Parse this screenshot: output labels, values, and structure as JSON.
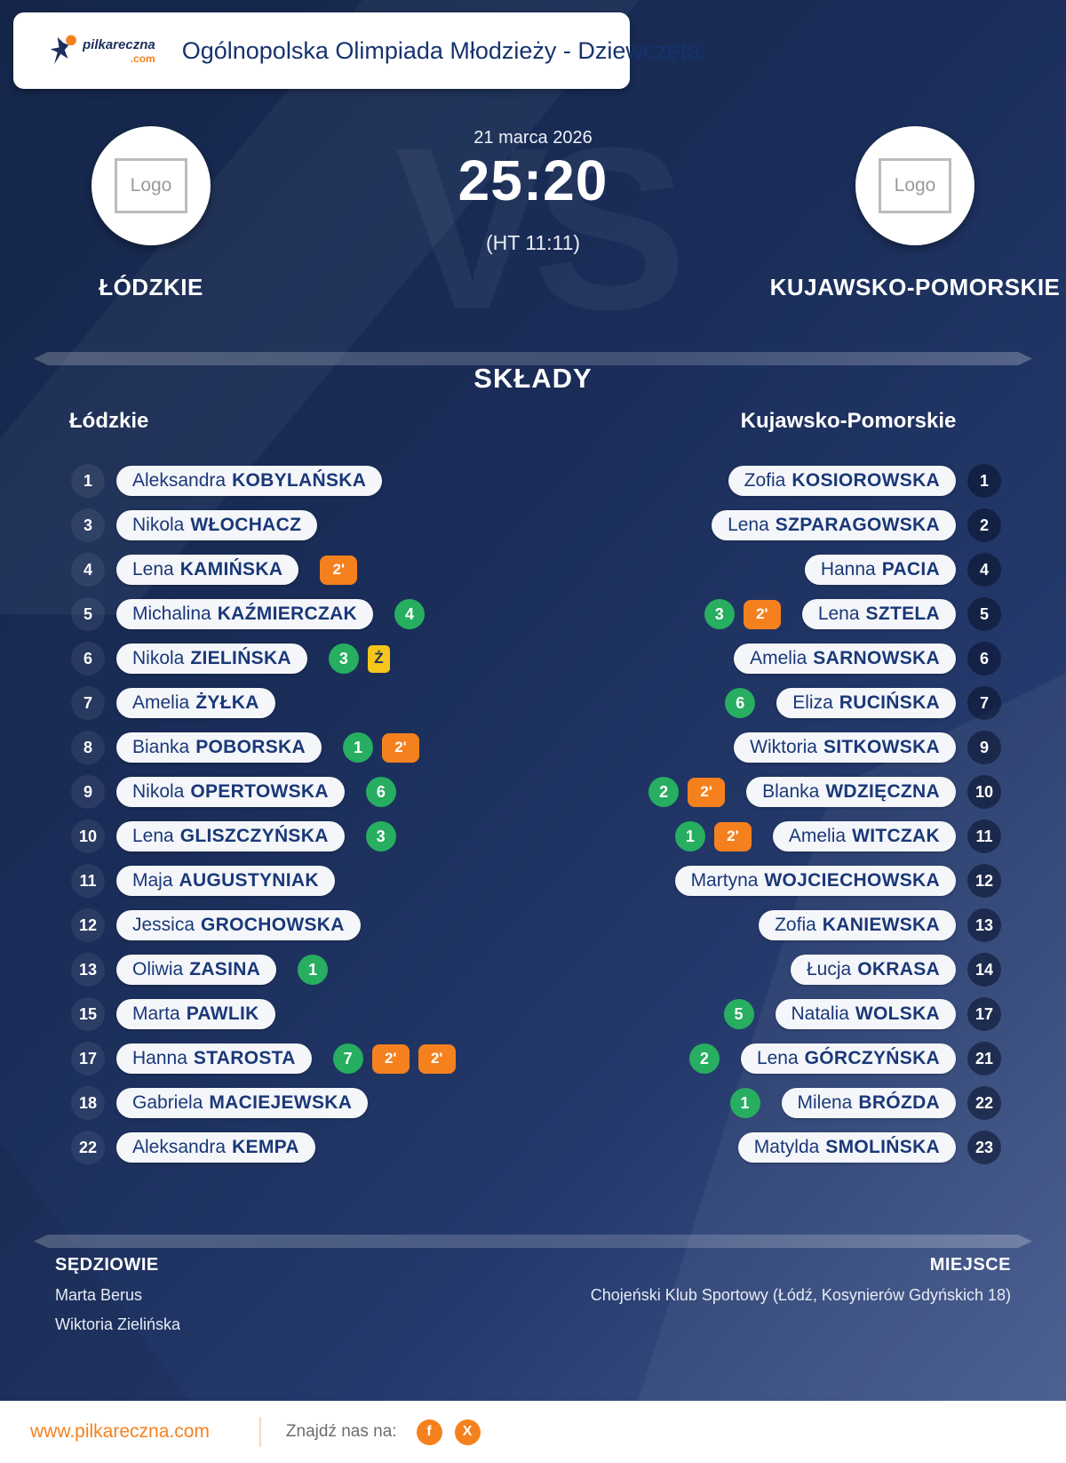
{
  "header": {
    "brand_name": "pilkareczna",
    "brand_tld": ".com",
    "title": "Ogólnopolska Olimpiada Młodzieży - Dziewczęta"
  },
  "match": {
    "date": "21 marca 2026",
    "score": "25:20",
    "halftime": "(HT 11:11)",
    "vs_watermark": "VS",
    "home": {
      "name": "ŁÓDZKIE",
      "logo_text": "Logo"
    },
    "away": {
      "name": "KUJAWSKO-POMORSKIE",
      "logo_text": "Logo"
    }
  },
  "lineups": {
    "title": "SKŁADY",
    "home_header": "Łódzkie",
    "away_header": "Kujawsko-Pomorskie",
    "home": [
      {
        "number": "1",
        "first": "Aleksandra",
        "last": "KOBYLAŃSKA",
        "badges": []
      },
      {
        "number": "3",
        "first": "Nikola",
        "last": "WŁOCHACZ",
        "badges": []
      },
      {
        "number": "4",
        "first": "Lena",
        "last": "KAMIŃSKA",
        "badges": [
          {
            "type": "suspension",
            "value": "2'"
          }
        ]
      },
      {
        "number": "5",
        "first": "Michalina",
        "last": "KAŹMIERCZAK",
        "badges": [
          {
            "type": "goals",
            "value": "4"
          }
        ]
      },
      {
        "number": "6",
        "first": "Nikola",
        "last": "ZIELIŃSKA",
        "badges": [
          {
            "type": "goals",
            "value": "3"
          },
          {
            "type": "yellow-card",
            "value": "Ż"
          }
        ]
      },
      {
        "number": "7",
        "first": "Amelia",
        "last": "ŻYŁKA",
        "badges": []
      },
      {
        "number": "8",
        "first": "Bianka",
        "last": "POBORSKA",
        "badges": [
          {
            "type": "goals",
            "value": "1"
          },
          {
            "type": "suspension",
            "value": "2'"
          }
        ]
      },
      {
        "number": "9",
        "first": "Nikola",
        "last": "OPERTOWSKA",
        "badges": [
          {
            "type": "goals",
            "value": "6"
          }
        ]
      },
      {
        "number": "10",
        "first": "Lena",
        "last": "GLISZCZYŃSKA",
        "badges": [
          {
            "type": "goals",
            "value": "3"
          }
        ]
      },
      {
        "number": "11",
        "first": "Maja",
        "last": "AUGUSTYNIAK",
        "badges": []
      },
      {
        "number": "12",
        "first": "Jessica",
        "last": "GROCHOWSKA",
        "badges": []
      },
      {
        "number": "13",
        "first": "Oliwia",
        "last": "ZASINA",
        "badges": [
          {
            "type": "goals",
            "value": "1"
          }
        ]
      },
      {
        "number": "15",
        "first": "Marta",
        "last": "PAWLIK",
        "badges": []
      },
      {
        "number": "17",
        "first": "Hanna",
        "last": "STAROSTA",
        "badges": [
          {
            "type": "goals",
            "value": "7"
          },
          {
            "type": "suspension",
            "value": "2'"
          },
          {
            "type": "suspension",
            "value": "2'"
          }
        ]
      },
      {
        "number": "18",
        "first": "Gabriela",
        "last": "MACIEJEWSKA",
        "badges": []
      },
      {
        "number": "22",
        "first": "Aleksandra",
        "last": "KEMPA",
        "badges": []
      }
    ],
    "away": [
      {
        "number": "1",
        "first": "Zofia",
        "last": "KOSIOROWSKA",
        "badges": []
      },
      {
        "number": "2",
        "first": "Lena",
        "last": "SZPARAGOWSKA",
        "badges": []
      },
      {
        "number": "4",
        "first": "Hanna",
        "last": "PACIA",
        "badges": []
      },
      {
        "number": "5",
        "first": "Lena",
        "last": "SZTELA",
        "badges": [
          {
            "type": "goals",
            "value": "3"
          },
          {
            "type": "suspension",
            "value": "2'"
          }
        ]
      },
      {
        "number": "6",
        "first": "Amelia",
        "last": "SARNOWSKA",
        "badges": []
      },
      {
        "number": "7",
        "first": "Eliza",
        "last": "RUCIŃSKA",
        "badges": [
          {
            "type": "goals",
            "value": "6"
          }
        ]
      },
      {
        "number": "9",
        "first": "Wiktoria",
        "last": "SITKOWSKA",
        "badges": []
      },
      {
        "number": "10",
        "first": "Blanka",
        "last": "WDZIĘCZNA",
        "badges": [
          {
            "type": "goals",
            "value": "2"
          },
          {
            "type": "suspension",
            "value": "2'"
          }
        ]
      },
      {
        "number": "11",
        "first": "Amelia",
        "last": "WITCZAK",
        "badges": [
          {
            "type": "goals",
            "value": "1"
          },
          {
            "type": "suspension",
            "value": "2'"
          }
        ]
      },
      {
        "number": "12",
        "first": "Martyna",
        "last": "WOJCIECHOWSKA",
        "badges": []
      },
      {
        "number": "13",
        "first": "Zofia",
        "last": "KANIEWSKA",
        "badges": []
      },
      {
        "number": "14",
        "first": "Łucja",
        "last": "OKRASA",
        "badges": []
      },
      {
        "number": "17",
        "first": "Natalia",
        "last": "WOLSKA",
        "badges": [
          {
            "type": "goals",
            "value": "5"
          }
        ]
      },
      {
        "number": "21",
        "first": "Lena",
        "last": "GÓRCZYŃSKA",
        "badges": [
          {
            "type": "goals",
            "value": "2"
          }
        ]
      },
      {
        "number": "22",
        "first": "Milena",
        "last": "BRÓZDA",
        "badges": [
          {
            "type": "goals",
            "value": "1"
          }
        ]
      },
      {
        "number": "23",
        "first": "Matylda",
        "last": "SMOLIŃSKA",
        "badges": []
      }
    ]
  },
  "officials": {
    "referees_title": "SĘDZIOWIE",
    "referees": [
      "Marta Berus",
      "Wiktoria Zielińska"
    ],
    "venue_title": "MIEJSCE",
    "venue": "Chojeński Klub Sportowy (Łódź, Kosynierów Gdyńskich 18)"
  },
  "footer": {
    "website": "www.pilkareczna.com",
    "find_us_label": "Znajdź nas na:",
    "social": [
      {
        "name": "facebook",
        "glyph": "f"
      },
      {
        "name": "x",
        "glyph": "X"
      }
    ]
  },
  "colors": {
    "background_navy": "#172a51",
    "accent_orange": "#f5811e",
    "goals_green": "#27ae60",
    "yellow_card": "#f6c61b",
    "name_navy": "#1a3878"
  }
}
